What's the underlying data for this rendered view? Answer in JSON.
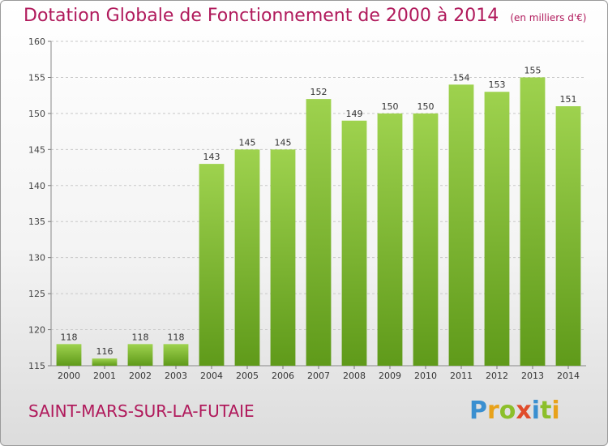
{
  "header": {
    "title": "Dotation Globale de Fonctionnement de 2000 à 2014",
    "subtitle": "(en milliers d'€)"
  },
  "footer": {
    "commune": "SAINT-MARS-SUR-LA-FUTAIE",
    "logo_text": "Proxiti"
  },
  "colors": {
    "title": "#b0195b",
    "bar_top": "#9ed24e",
    "bar_bottom": "#5f9a1a",
    "grid": "#c8c8c8"
  },
  "chart_data": {
    "type": "bar",
    "title": "Dotation Globale de Fonctionnement de 2000 à 2014",
    "subtitle": "(en milliers d'€)",
    "xlabel": "",
    "ylabel": "",
    "categories": [
      "2000",
      "2001",
      "2002",
      "2003",
      "2004",
      "2005",
      "2006",
      "2007",
      "2008",
      "2009",
      "2010",
      "2011",
      "2012",
      "2013",
      "2014"
    ],
    "values": [
      118,
      116,
      118,
      118,
      143,
      145,
      145,
      152,
      149,
      150,
      150,
      154,
      153,
      155,
      151
    ],
    "ylim": [
      115,
      160
    ],
    "yticks": [
      115,
      120,
      125,
      130,
      135,
      140,
      145,
      150,
      155,
      160
    ],
    "grid": true,
    "legend": "none",
    "data_labels": true
  }
}
